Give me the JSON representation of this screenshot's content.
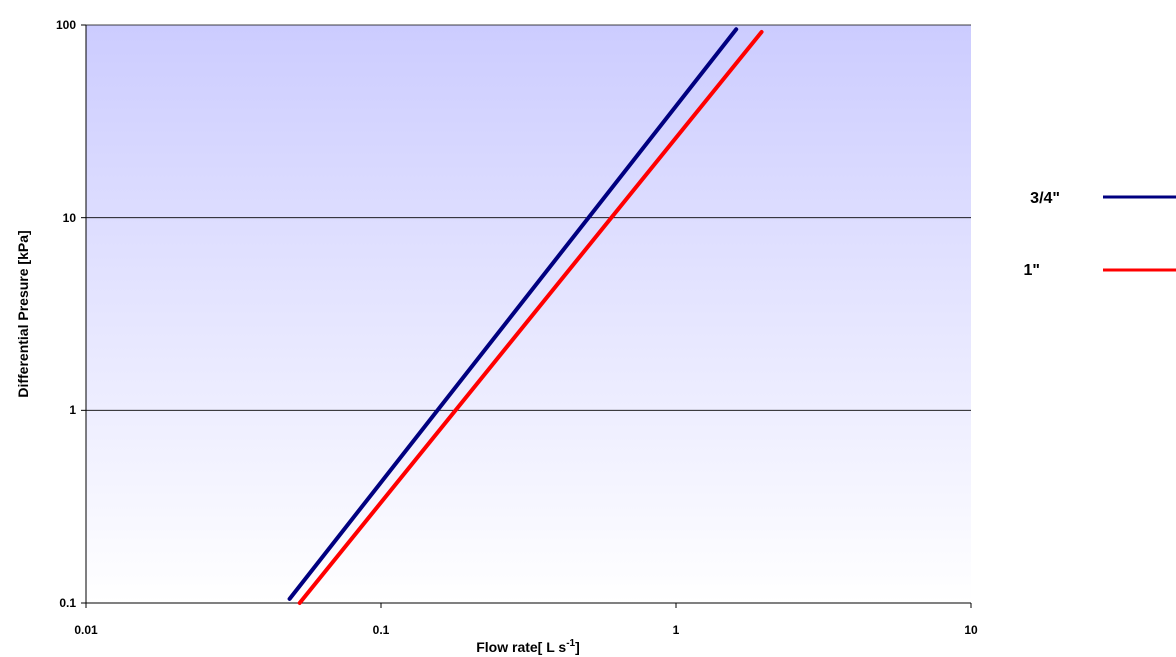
{
  "chart_data": {
    "type": "line",
    "x_scale": "log",
    "y_scale": "log",
    "xlim": [
      0.01,
      10
    ],
    "ylim": [
      0.1,
      100
    ],
    "x_ticks": [
      "0.01",
      "0.1",
      "1",
      "10"
    ],
    "y_ticks": [
      "0.1",
      "1",
      "10",
      "100"
    ],
    "xlabel_main": "Flow rate[ L s",
    "xlabel_sup": "-1",
    "xlabel_end": "]",
    "ylabel": "Differential Presure [kPa]",
    "grid": "horizontal major lines",
    "background": "vertical gradient from #ccccff (top) to #ffffff (bottom)",
    "legend_position": "right",
    "series": [
      {
        "name": "3/4\"",
        "color": "#000080",
        "x": [
          0.049,
          1.6
        ],
        "y": [
          0.105,
          95
        ]
      },
      {
        "name": "1\"",
        "color": "#ff0000",
        "x": [
          0.053,
          1.95
        ],
        "y": [
          0.1,
          92
        ]
      }
    ]
  }
}
